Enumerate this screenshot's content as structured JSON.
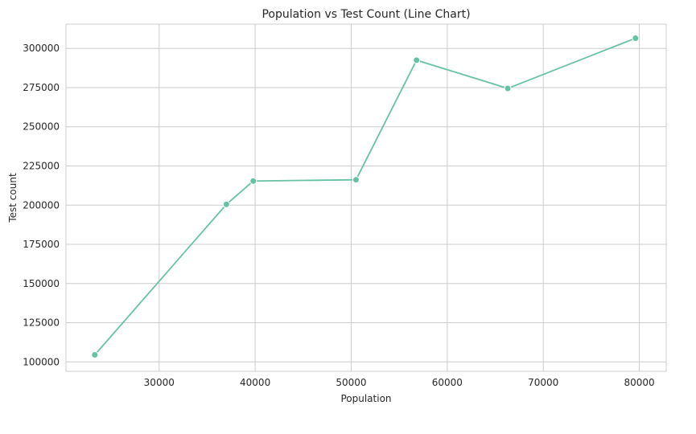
{
  "chart_data": {
    "type": "line",
    "title": "Population vs Test Count (Line Chart)",
    "xlabel": "Population",
    "ylabel": "Test count",
    "xlim": [
      20300,
      82800
    ],
    "ylim": [
      94000,
      315500
    ],
    "xticks": [
      30000,
      40000,
      50000,
      60000,
      70000,
      80000
    ],
    "yticks": [
      100000,
      125000,
      150000,
      175000,
      200000,
      225000,
      250000,
      275000,
      300000
    ],
    "grid": true,
    "series": [
      {
        "color": "#66c2a5",
        "x": [
          23300,
          37000,
          39800,
          50500,
          56800,
          66300,
          79600
        ],
        "y": [
          104500,
          200500,
          215400,
          216200,
          292500,
          274500,
          306500
        ]
      }
    ]
  }
}
